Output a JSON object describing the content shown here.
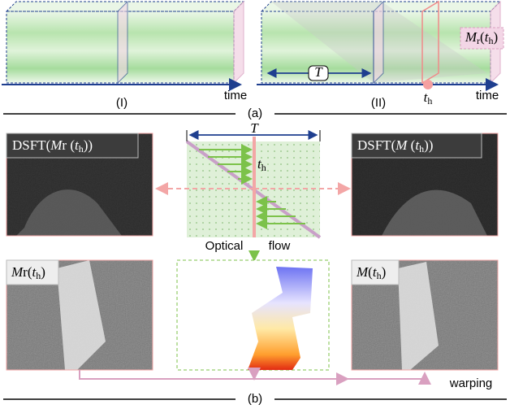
{
  "panel_a": {
    "label": "(a)",
    "left": {
      "label": "(I)",
      "axis": "time"
    },
    "right": {
      "label": "(II)",
      "axis": "time",
      "window": "T",
      "time_point": [
        {
          "t": "t",
          "italic": true
        },
        {
          "t": "h",
          "sub": true
        }
      ],
      "volume_label": [
        {
          "t": "M",
          "italic": true
        },
        {
          "t": "r",
          "sub": true
        },
        {
          "t": "("
        },
        {
          "t": "t",
          "italic": true
        },
        {
          "t": "h",
          "sub": true
        },
        {
          "t": ")"
        }
      ]
    }
  },
  "panel_b": {
    "label": "(b)",
    "dsft_left": [
      {
        "t": "DSFT("
      },
      {
        "t": "M",
        "italic": true
      },
      {
        "t": "r"
      },
      {
        "t": " ("
      },
      {
        "t": "t",
        "italic": true
      },
      {
        "t": "h",
        "sub": true
      },
      {
        "t": "))"
      }
    ],
    "dsft_right": [
      {
        "t": "DSFT("
      },
      {
        "t": "M",
        "italic": true
      },
      {
        "t": " ("
      },
      {
        "t": "t",
        "italic": true
      },
      {
        "t": "h",
        "sub": true
      },
      {
        "t": "))"
      }
    ],
    "window": "T",
    "time_point": [
      {
        "t": "t",
        "italic": true
      },
      {
        "t": "h",
        "sub": true
      }
    ],
    "flow_label": [
      "Optical",
      "flow"
    ],
    "frame_left": [
      {
        "t": "M",
        "italic": true
      },
      {
        "t": "r"
      },
      {
        "t": "("
      },
      {
        "t": "t",
        "italic": true
      },
      {
        "t": "h",
        "sub": true
      },
      {
        "t": ")"
      }
    ],
    "frame_right": [
      {
        "t": "M",
        "italic": true
      },
      {
        "t": "("
      },
      {
        "t": "t",
        "italic": true
      },
      {
        "t": "h",
        "sub": true
      },
      {
        "t": ")"
      }
    ],
    "warp_label": "warping"
  }
}
